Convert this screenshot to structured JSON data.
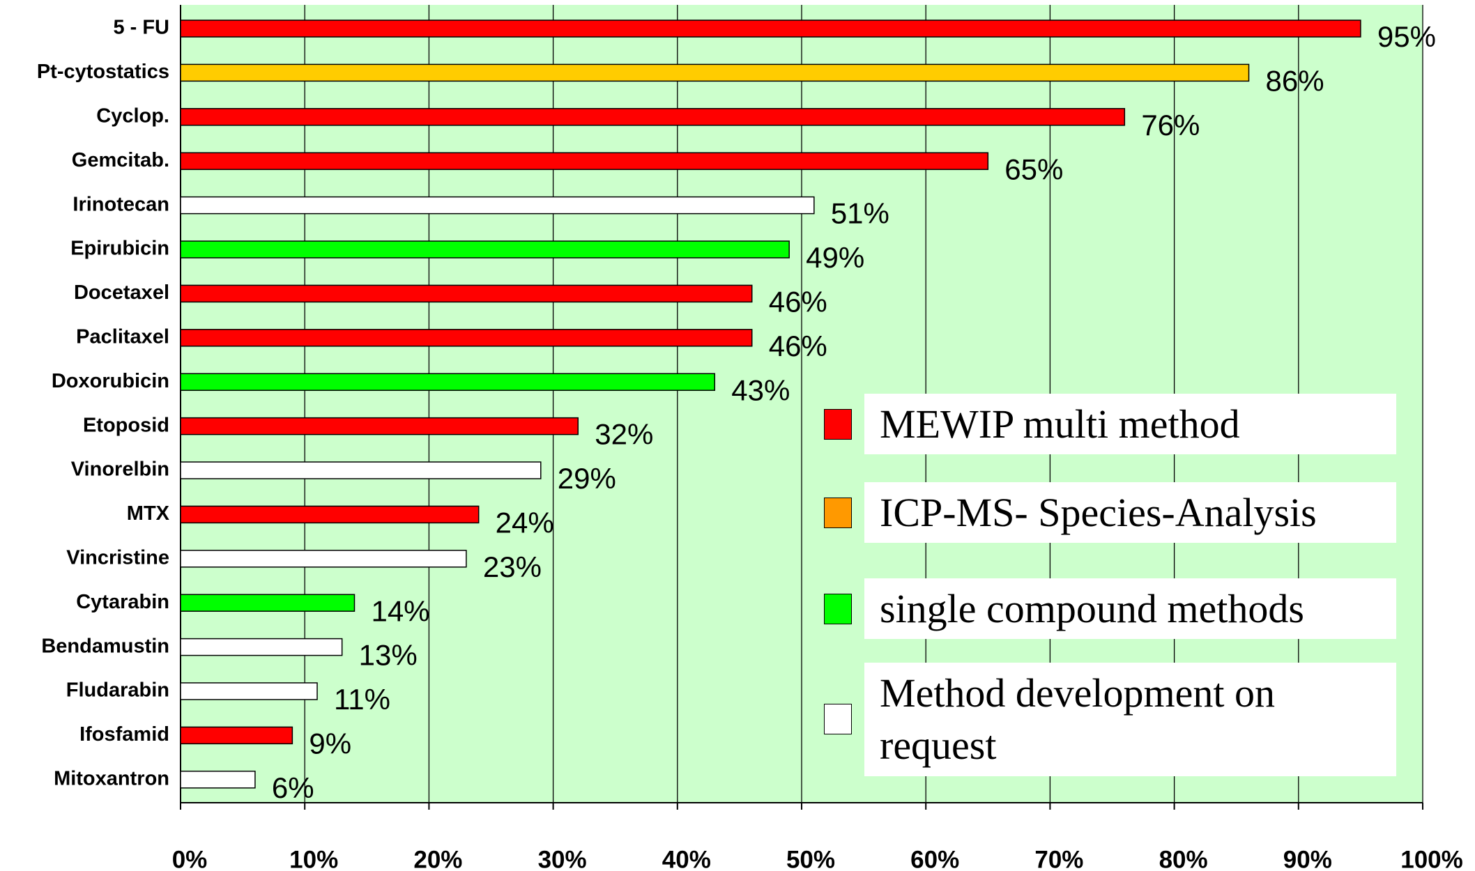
{
  "chart_data": {
    "type": "bar",
    "orientation": "horizontal",
    "categories": [
      "5 - FU",
      "Pt-cytostatics",
      "Cyclop.",
      "Gemcitab.",
      "Irinotecan",
      "Epirubicin",
      "Docetaxel",
      "Paclitaxel",
      "Doxorubicin",
      "Etoposid",
      "Vinorelbin",
      "MTX",
      "Vincristine",
      "Cytarabin",
      "Bendamustin",
      "Fludarabin",
      "Ifosfamid",
      "Mitoxantron"
    ],
    "values": [
      95,
      86,
      76,
      65,
      51,
      49,
      46,
      46,
      43,
      32,
      29,
      24,
      23,
      14,
      13,
      11,
      9,
      6
    ],
    "value_labels": [
      "95%",
      "86%",
      "76%",
      "65%",
      "51%",
      "49%",
      "46%",
      "46%",
      "43%",
      "32%",
      "29%",
      "24%",
      "23%",
      "14%",
      "13%",
      "11%",
      "9%",
      "6%"
    ],
    "colors": [
      "#ff0000",
      "#ffcc00",
      "#ff0000",
      "#ff0000",
      "#ffffff",
      "#00ff00",
      "#ff0000",
      "#ff0000",
      "#00ff00",
      "#ff0000",
      "#ffffff",
      "#ff0000",
      "#ffffff",
      "#00ff00",
      "#ffffff",
      "#ffffff",
      "#ff0000",
      "#ffffff"
    ],
    "xlim": [
      0,
      100
    ],
    "xticks": [
      {
        "value": 0,
        "label": "0%"
      },
      {
        "value": 10,
        "label": "10%"
      },
      {
        "value": 20,
        "label": "20%"
      },
      {
        "value": 30,
        "label": "30%"
      },
      {
        "value": 40,
        "label": "40%"
      },
      {
        "value": 50,
        "label": "50%"
      },
      {
        "value": 60,
        "label": "60%"
      },
      {
        "value": 70,
        "label": "70%"
      },
      {
        "value": 80,
        "label": "80%"
      },
      {
        "value": 90,
        "label": "90%"
      },
      {
        "value": 100,
        "label": "100%"
      }
    ],
    "grid": true,
    "legend": [
      {
        "name": "MEWIP multi method",
        "color": "#ff0000"
      },
      {
        "name": "ICP-MS- Species-Analysis",
        "color": "#ff9900"
      },
      {
        "name": "single compound methods",
        "color": "#00ff00"
      },
      {
        "name": "Method development on request",
        "color": "#ffffff"
      }
    ]
  }
}
